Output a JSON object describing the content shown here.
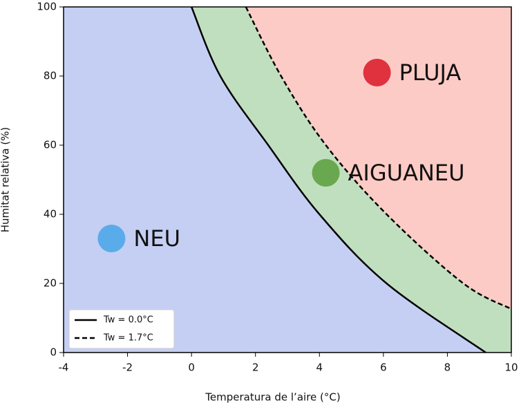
{
  "chart_data": {
    "type": "line",
    "xlabel": "Temperatura de l’aire (°C)",
    "ylabel": "Humitat relativa (%)",
    "xlim": [
      -4,
      10
    ],
    "ylim": [
      0,
      100
    ],
    "xticks": [
      -4,
      -2,
      0,
      2,
      4,
      6,
      8,
      10
    ],
    "yticks": [
      0,
      20,
      40,
      60,
      80,
      100
    ],
    "region_colors": [
      "#c5cff3",
      "#c0dfbf",
      "#fdcbc5"
    ],
    "series": [
      {
        "name": "Tw = 0.0°C",
        "color": "#000000",
        "dash": false,
        "x": [
          0,
          0.9,
          2.4,
          4.0,
          6.1,
          9.2
        ],
        "values": [
          100,
          80,
          60,
          40,
          20,
          0
        ]
      },
      {
        "name": "Tw = 1.7°C",
        "color": "#000000",
        "dash": true,
        "x": [
          1.7,
          2.8,
          4.2,
          6.1,
          8.5,
          10
        ],
        "values": [
          100,
          80,
          60,
          40,
          20,
          12.6
        ]
      }
    ],
    "annotations": [
      {
        "text": "NEU",
        "x": -2.5,
        "y": 33,
        "color": "#5aabea"
      },
      {
        "text": "AIGUANEU",
        "x": 4.2,
        "y": 52,
        "color": "#6aa84f"
      },
      {
        "text": "PLUJA",
        "x": 5.8,
        "y": 81,
        "color": "#e0313f"
      }
    ],
    "legend": "lower left"
  }
}
